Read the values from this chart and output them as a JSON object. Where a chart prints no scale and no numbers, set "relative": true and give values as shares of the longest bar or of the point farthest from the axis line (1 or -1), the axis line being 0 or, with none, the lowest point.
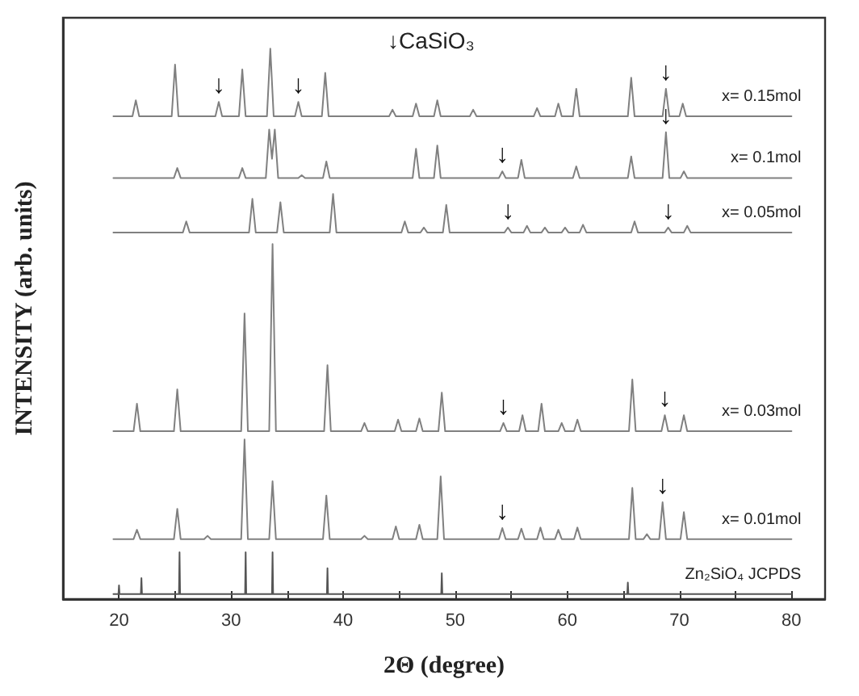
{
  "chart_data": {
    "type": "line",
    "relative": true,
    "xlabel": "2Θ (degree)",
    "ylabel": "INTENSITY (arb. units)",
    "xlim": [
      15,
      83
    ],
    "xticks": [
      20,
      {
        "value": 25,
        "label": null
      },
      30,
      {
        "value": 35,
        "label": null
      },
      40,
      {
        "value": 45,
        "label": null
      },
      50,
      {
        "value": 55,
        "label": null
      },
      60,
      {
        "value": 65,
        "label": null
      },
      70,
      {
        "value": 75,
        "label": null
      },
      80
    ],
    "grid": false,
    "legend": false,
    "marker": "none",
    "line_style": "solid",
    "series": [
      {
        "name": "x= 0.15mol",
        "color": "#808080",
        "x": [
          19.5,
          21.2,
          21.5,
          21.8,
          24.7,
          25.0,
          25.3,
          28.6,
          28.9,
          29.2,
          30.7,
          31.0,
          31.3,
          33.2,
          33.5,
          33.8,
          35.7,
          36.0,
          36.3,
          38.1,
          38.4,
          38.7,
          44.1,
          44.4,
          44.7,
          46.2,
          46.5,
          46.8,
          48.1,
          48.4,
          48.7,
          51.3,
          51.6,
          51.9,
          57.0,
          57.3,
          57.6,
          58.9,
          59.2,
          59.5,
          60.5,
          60.8,
          61.1,
          65.4,
          65.7,
          66.0,
          68.5,
          68.8,
          69.1,
          70.0,
          70.3,
          70.6,
          80
        ],
        "values": [
          0.877,
          0.877,
          0.906,
          0.877,
          0.877,
          0.971,
          0.877,
          0.877,
          0.903,
          0.877,
          0.877,
          0.962,
          0.877,
          0.877,
          1,
          0.877,
          0.877,
          0.903,
          0.877,
          0.877,
          0.956,
          0.877,
          0.877,
          0.889,
          0.877,
          0.877,
          0.9,
          0.877,
          0.877,
          0.906,
          0.877,
          0.877,
          0.889,
          0.877,
          0.877,
          0.892,
          0.877,
          0.877,
          0.9,
          0.877,
          0.877,
          0.927,
          0.877,
          0.877,
          0.947,
          0.877,
          0.877,
          0.927,
          0.877,
          0.877,
          0.9,
          0.877,
          0.877
        ]
      },
      {
        "name": "x= 0.1mol",
        "color": "#808080",
        "x": [
          19.5,
          24.9,
          25.2,
          25.5,
          30.7,
          31.0,
          31.3,
          33.1,
          33.4,
          33.65,
          33.9,
          34.2,
          36.0,
          36.3,
          36.6,
          38.2,
          38.5,
          38.8,
          46.2,
          46.5,
          46.8,
          48.1,
          48.4,
          48.7,
          53.9,
          54.2,
          54.5,
          55.6,
          55.9,
          56.2,
          60.5,
          60.8,
          61.1,
          65.4,
          65.7,
          66.0,
          68.5,
          68.8,
          69.1,
          70.1,
          70.4,
          70.7,
          80
        ],
        "values": [
          0.765,
          0.765,
          0.783,
          0.765,
          0.765,
          0.783,
          0.765,
          0.765,
          0.853,
          0.8,
          0.853,
          0.765,
          0.765,
          0.77,
          0.765,
          0.765,
          0.795,
          0.765,
          0.765,
          0.818,
          0.765,
          0.765,
          0.824,
          0.765,
          0.765,
          0.777,
          0.765,
          0.765,
          0.798,
          0.765,
          0.765,
          0.786,
          0.765,
          0.765,
          0.804,
          0.765,
          0.765,
          0.848,
          0.765,
          0.765,
          0.777,
          0.765,
          0.765
        ]
      },
      {
        "name": "x= 0.05mol",
        "color": "#808080",
        "x": [
          19.5,
          25.7,
          26.0,
          26.3,
          31.6,
          31.9,
          32.2,
          34.1,
          34.4,
          34.7,
          38.8,
          39.1,
          39.4,
          45.2,
          45.5,
          45.8,
          46.9,
          47.2,
          47.5,
          48.9,
          49.2,
          49.5,
          54.4,
          54.7,
          55.0,
          56.1,
          56.4,
          56.7,
          57.7,
          58.0,
          58.3,
          59.5,
          59.8,
          60.1,
          61.1,
          61.4,
          61.7,
          65.7,
          66.0,
          66.3,
          68.7,
          69.0,
          69.3,
          70.4,
          70.7,
          71.0,
          80
        ],
        "values": [
          0.666,
          0.666,
          0.686,
          0.666,
          0.666,
          0.727,
          0.666,
          0.666,
          0.721,
          0.666,
          0.666,
          0.736,
          0.666,
          0.666,
          0.686,
          0.666,
          0.666,
          0.675,
          0.666,
          0.666,
          0.716,
          0.666,
          0.666,
          0.675,
          0.666,
          0.666,
          0.678,
          0.666,
          0.666,
          0.675,
          0.666,
          0.666,
          0.675,
          0.666,
          0.666,
          0.68,
          0.666,
          0.666,
          0.686,
          0.666,
          0.666,
          0.675,
          0.666,
          0.666,
          0.678,
          0.666,
          0.666
        ]
      },
      {
        "name": "x= 0.03mol",
        "color": "#808080",
        "x": [
          19.5,
          21.3,
          21.6,
          21.9,
          24.9,
          25.2,
          25.5,
          30.9,
          31.2,
          31.5,
          33.4,
          33.7,
          34.0,
          38.3,
          38.6,
          38.9,
          41.6,
          41.9,
          42.2,
          44.6,
          44.9,
          45.2,
          46.5,
          46.8,
          47.1,
          48.5,
          48.8,
          49.1,
          54.0,
          54.3,
          54.6,
          55.7,
          56.0,
          56.3,
          57.4,
          57.7,
          58.0,
          59.2,
          59.5,
          59.8,
          60.6,
          60.9,
          61.2,
          65.5,
          65.8,
          66.1,
          68.4,
          68.7,
          69.0,
          70.1,
          70.4,
          70.7,
          80
        ],
        "values": [
          0.305,
          0.305,
          0.355,
          0.305,
          0.305,
          0.381,
          0.305,
          0.305,
          0.519,
          0.305,
          0.305,
          0.645,
          0.305,
          0.305,
          0.425,
          0.305,
          0.305,
          0.32,
          0.305,
          0.305,
          0.326,
          0.305,
          0.305,
          0.328,
          0.305,
          0.305,
          0.375,
          0.305,
          0.305,
          0.32,
          0.305,
          0.305,
          0.334,
          0.305,
          0.305,
          0.355,
          0.305,
          0.305,
          0.32,
          0.305,
          0.305,
          0.326,
          0.305,
          0.305,
          0.399,
          0.305,
          0.305,
          0.334,
          0.305,
          0.305,
          0.334,
          0.305,
          0.305
        ]
      },
      {
        "name": "x= 0.01mol",
        "color": "#808080",
        "x": [
          19.5,
          21.3,
          21.6,
          21.9,
          24.9,
          25.2,
          25.5,
          27.6,
          27.9,
          28.2,
          30.9,
          31.2,
          31.5,
          33.4,
          33.7,
          34.0,
          38.2,
          38.5,
          38.8,
          41.6,
          41.9,
          42.2,
          44.4,
          44.7,
          45.0,
          46.5,
          46.8,
          47.1,
          48.4,
          48.7,
          49.0,
          53.9,
          54.2,
          54.5,
          55.6,
          55.9,
          56.2,
          57.3,
          57.6,
          57.9,
          58.9,
          59.2,
          59.5,
          60.6,
          60.9,
          61.2,
          65.5,
          65.8,
          66.1,
          66.8,
          67.1,
          67.4,
          68.2,
          68.5,
          68.8,
          70.1,
          70.4,
          70.7,
          80
        ],
        "values": [
          0.109,
          0.109,
          0.126,
          0.109,
          0.109,
          0.164,
          0.109,
          0.109,
          0.115,
          0.109,
          0.109,
          0.29,
          0.109,
          0.109,
          0.214,
          0.109,
          0.109,
          0.188,
          0.109,
          0.109,
          0.115,
          0.109,
          0.109,
          0.132,
          0.109,
          0.109,
          0.135,
          0.109,
          0.109,
          0.223,
          0.109,
          0.109,
          0.129,
          0.109,
          0.109,
          0.128,
          0.109,
          0.109,
          0.13,
          0.109,
          0.109,
          0.126,
          0.109,
          0.109,
          0.13,
          0.109,
          0.109,
          0.202,
          0.109,
          0.109,
          0.118,
          0.109,
          0.109,
          0.176,
          0.109,
          0.109,
          0.158,
          0.109,
          0.109
        ]
      },
      {
        "name": "Zn₂SiO₄ JCPDS",
        "color": "#555555",
        "x": [
          19.5,
          19.95,
          20.0,
          20.05,
          21.95,
          22.0,
          22.05,
          25.35,
          25.4,
          25.45,
          31.25,
          31.3,
          31.35,
          33.65,
          33.7,
          33.75,
          38.55,
          38.6,
          38.65,
          48.75,
          48.8,
          48.85,
          65.35,
          65.4,
          65.45,
          80
        ],
        "values": [
          0.009,
          0.009,
          0.025,
          0.009,
          0.009,
          0.038,
          0.009,
          0.009,
          0.085,
          0.009,
          0.009,
          0.085,
          0.009,
          0.009,
          0.085,
          0.009,
          0.009,
          0.056,
          0.009,
          0.009,
          0.047,
          0.009,
          0.009,
          0.03,
          0.009,
          0.009
        ]
      }
    ],
    "annotations": [
      "↓CaSiO₃",
      {
        "text": "↓",
        "x": 28.9,
        "y": 0.903
      },
      {
        "text": "↓",
        "x": 36.0,
        "y": 0.903
      },
      {
        "text": "↓",
        "x": 68.8,
        "y": 0.927
      },
      {
        "text": "↓",
        "x": 54.2,
        "y": 0.777
      },
      {
        "text": "↓",
        "x": 68.8,
        "y": 0.848
      },
      {
        "text": "↓",
        "x": 54.7,
        "y": 0.675
      },
      {
        "text": "↓",
        "x": 69.0,
        "y": 0.675
      },
      {
        "text": "↓",
        "x": 54.3,
        "y": 0.32
      },
      {
        "text": "↓",
        "x": 68.7,
        "y": 0.334
      },
      {
        "text": "↓",
        "x": 54.2,
        "y": 0.129
      },
      {
        "text": "↓",
        "x": 68.5,
        "y": 0.176
      }
    ]
  }
}
